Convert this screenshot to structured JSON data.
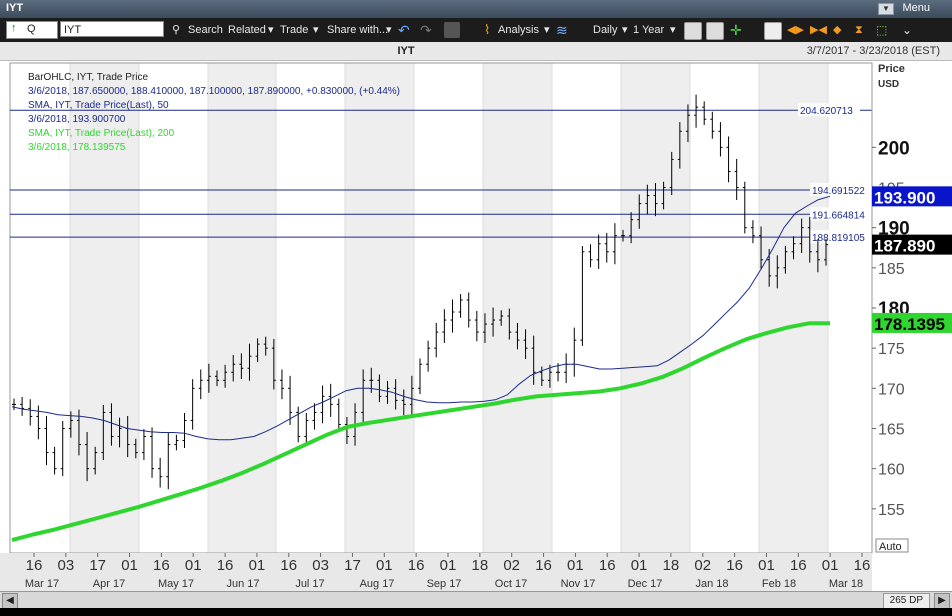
{
  "window": {
    "title": "IYT",
    "menu_label": "Menu"
  },
  "toolbar": {
    "security_type": "Q",
    "symbol": "IYT",
    "search_label": "Search",
    "related_label": "Related",
    "trade_label": "Trade",
    "share_label": "Share with...",
    "analysis_label": "Analysis",
    "period_label": "Daily",
    "range_label": "1 Year"
  },
  "header": {
    "symbol": "IYT",
    "date_range": "3/7/2017 - 3/23/2018 (EST)"
  },
  "bottom": {
    "dp_label": "265 DP"
  },
  "chart_data": {
    "type": "line",
    "title": "IYT",
    "legend": [
      {
        "text": "BarOHLC, IYT, Trade Price",
        "color": "#222222"
      },
      {
        "text": "3/6/2018, 187.650000, 188.410000, 187.100000, 187.890000, +0.830000, (+0.44%)",
        "color": "#1c2a8c"
      },
      {
        "text": "SMA, IYT, Trade Price(Last),  50",
        "color": "#1c2a8c"
      },
      {
        "text": "3/6/2018, 193.900700",
        "color": "#1c2a8c"
      },
      {
        "text": "SMA, IYT, Trade Price(Last),  200",
        "color": "#2fd62f"
      },
      {
        "text": "3/6/2018, 178.139575",
        "color": "#2fd62f"
      }
    ],
    "y_axis": {
      "title": "Price",
      "unit": "USD",
      "ylim": [
        149.5,
        210.5
      ],
      "ticks": [
        155,
        160,
        165,
        170,
        175,
        180,
        185,
        190,
        195,
        200
      ],
      "major_ticks": [
        200,
        190,
        180
      ],
      "position": "right"
    },
    "x_axis": {
      "day_ticks": [
        "16",
        "03",
        "17",
        "01",
        "16",
        "01",
        "16",
        "01",
        "16",
        "03",
        "17",
        "01",
        "16",
        "01",
        "18",
        "02",
        "16",
        "01",
        "16",
        "01",
        "18",
        "02",
        "16",
        "01",
        "16",
        "01",
        "16"
      ],
      "month_labels": [
        "Mar 17",
        "Apr 17",
        "May 17",
        "Jun 17",
        "Jul 17",
        "Aug 17",
        "Sep 17",
        "Oct 17",
        "Nov 17",
        "Dec 17",
        "Jan 18",
        "Feb 18",
        "Mar 18"
      ],
      "auto_label": "Auto"
    },
    "horizontal_lines": [
      {
        "value": 204.620713,
        "label": "204.620713"
      },
      {
        "value": 194.691522,
        "label": "194.691522"
      },
      {
        "value": 191.664814,
        "label": "191.664814"
      },
      {
        "value": 188.819105,
        "label": "188.819105"
      }
    ],
    "last_values": [
      {
        "value": 193.9,
        "label": "193.900",
        "bg": "#0a14c8",
        "fg": "#ffffff"
      },
      {
        "value": 187.89,
        "label": "187.890",
        "bg": "#000000",
        "fg": "#ffffff"
      },
      {
        "value": 178.139575,
        "label": "178.1395",
        "bg": "#2fd62f",
        "fg": "#000000"
      }
    ],
    "colors": {
      "bars": "#000000",
      "sma50": "#1c2a8c",
      "sma200": "#2fd62f",
      "hline": "#1c2a8c"
    },
    "series": [
      {
        "name": "IYT Trade Price (close)",
        "kind": "bars",
        "values": [
          168,
          167.5,
          166.5,
          165,
          162,
          160,
          165,
          166,
          163,
          160,
          162,
          167,
          164,
          165,
          163,
          162,
          164,
          160,
          159,
          163,
          163.5,
          166,
          170,
          171,
          171.5,
          171,
          172,
          173,
          172.5,
          174,
          175.5,
          175,
          171,
          170,
          167,
          164,
          166,
          167,
          169,
          168,
          165.5,
          164,
          167,
          171,
          171,
          169,
          170,
          168.5,
          168,
          170,
          173,
          175,
          177,
          178.5,
          179.5,
          181,
          178.5,
          177,
          178,
          178.5,
          179,
          177,
          176,
          175,
          172,
          171,
          172,
          172,
          173,
          176,
          187,
          186,
          188,
          187,
          189,
          189,
          191,
          193,
          194,
          193,
          195,
          198.5,
          202,
          204,
          205,
          203.5,
          202,
          200,
          197,
          195,
          190,
          189,
          186,
          184,
          185,
          187,
          188,
          190,
          187,
          186,
          187.89
        ]
      },
      {
        "name": "SMA 50",
        "values": [
          167.7,
          167.4,
          167.2,
          167.0,
          166.7,
          166.6,
          166.5,
          166.3,
          166.0,
          165.5,
          165.0,
          164.8,
          164.6,
          164.5,
          164.5,
          164.4,
          164.0,
          163.7,
          163.6,
          163.6,
          163.8,
          164.0,
          164.6,
          165.3,
          166.1,
          166.9,
          167.7,
          168.3,
          169.0,
          169.7,
          170.0,
          170.0,
          169.8,
          169.5,
          169.0,
          168.6,
          168.3,
          168.2,
          168.2,
          168.3,
          168.3,
          168.4,
          168.6,
          169.2,
          170.5,
          171.6,
          172.2,
          172.7,
          173.0,
          173.0,
          172.7,
          172.4,
          172.4,
          172.5,
          172.6,
          172.7,
          172.8,
          173.5,
          174.5,
          175.5,
          176.6,
          178.0,
          179.4,
          180.8,
          182.5,
          184.8,
          187.3,
          190.0,
          191.8,
          192.7,
          193.5,
          193.9
        ]
      },
      {
        "name": "SMA 200",
        "values": [
          151.1,
          151.8,
          152.4,
          153.1,
          153.8,
          154.5,
          155.2,
          156.0,
          156.8,
          157.6,
          158.5,
          159.5,
          160.6,
          161.8,
          163.0,
          164.2,
          165.2,
          165.7,
          166.1,
          166.5,
          166.9,
          167.3,
          167.7,
          168.1,
          168.6,
          169.0,
          169.2,
          169.4,
          169.6,
          170.0,
          170.6,
          171.4,
          172.5,
          173.8,
          175.0,
          176.1,
          176.9,
          177.6,
          178.1,
          178.1
        ]
      }
    ]
  }
}
